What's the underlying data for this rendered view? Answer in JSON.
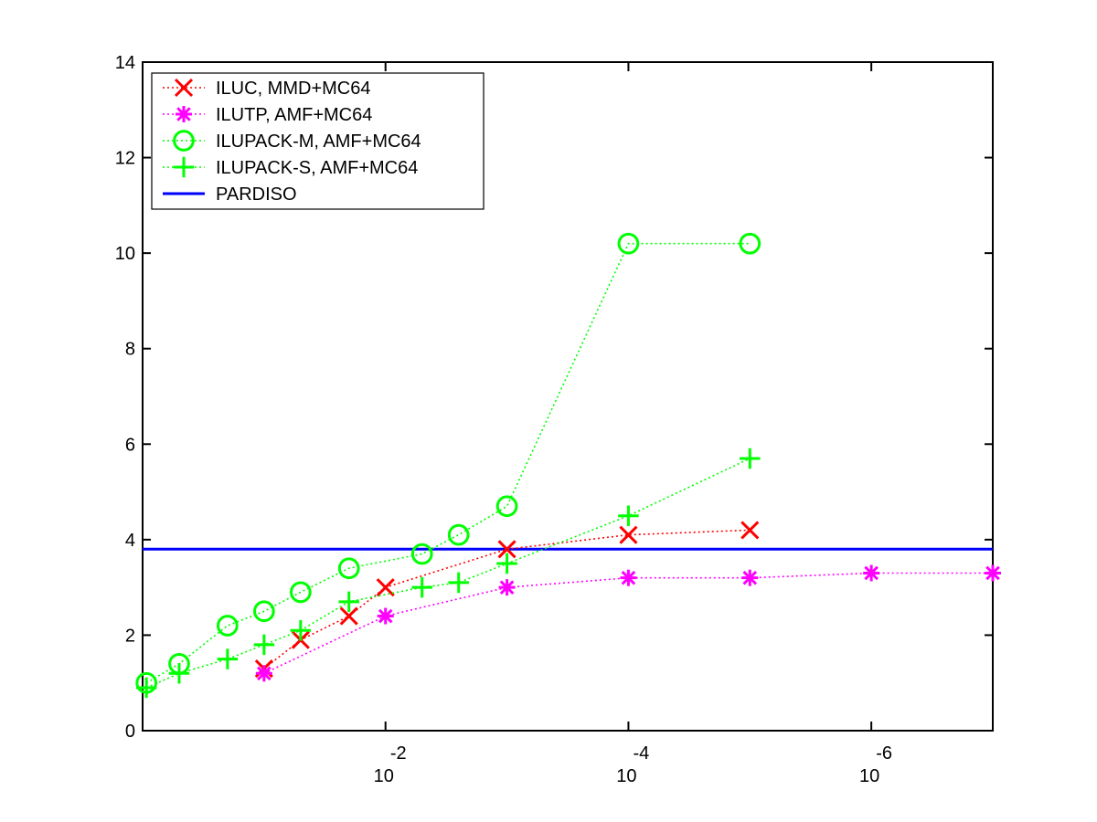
{
  "chart_data": {
    "type": "line",
    "x_scale": "log-reversed",
    "xlim": [
      1.0,
      1e-07
    ],
    "ylim": [
      0,
      14
    ],
    "yticks": [
      0,
      2,
      4,
      6,
      8,
      10,
      12,
      14
    ],
    "xticks": [
      {
        "value": 0.01,
        "base": "10",
        "exponent": "-2"
      },
      {
        "value": 0.0001,
        "base": "10",
        "exponent": "-4"
      },
      {
        "value": 1e-06,
        "base": "10",
        "exponent": "-6"
      }
    ],
    "grid": false,
    "legend": {
      "placement": "top-left"
    },
    "series": [
      {
        "name": "ILUC, MMD+MC64",
        "color": "#ff0000",
        "marker": "x",
        "line": "dotted",
        "points": [
          [
            0.1,
            1.3
          ],
          [
            0.05,
            1.9
          ],
          [
            0.02,
            2.4
          ],
          [
            0.01,
            3.0
          ],
          [
            0.001,
            3.8
          ],
          [
            0.0001,
            4.1
          ],
          [
            1e-05,
            4.2
          ]
        ]
      },
      {
        "name": "ILUTP, AMF+MC64",
        "color": "#ff00ff",
        "marker": "asterisk",
        "line": "dotted",
        "points": [
          [
            0.1,
            1.2
          ],
          [
            0.01,
            2.4
          ],
          [
            0.001,
            3.0
          ],
          [
            0.0001,
            3.2
          ],
          [
            1e-05,
            3.2
          ],
          [
            1e-06,
            3.3
          ],
          [
            1e-07,
            3.3
          ]
        ]
      },
      {
        "name": "ILUPACK-M, AMF+MC64",
        "color": "#00ff00",
        "marker": "circle",
        "line": "dotted",
        "points": [
          [
            0.93,
            1.0
          ],
          [
            0.5,
            1.4
          ],
          [
            0.2,
            2.2
          ],
          [
            0.1,
            2.5
          ],
          [
            0.05,
            2.9
          ],
          [
            0.02,
            3.4
          ],
          [
            0.005,
            3.7
          ],
          [
            0.0025,
            4.1
          ],
          [
            0.001,
            4.7
          ],
          [
            0.0001,
            10.2
          ],
          [
            1e-05,
            10.2
          ]
        ]
      },
      {
        "name": "ILUPACK-S, AMF+MC64",
        "color": "#00ff00",
        "marker": "plus",
        "line": "dotted",
        "points": [
          [
            0.93,
            0.9
          ],
          [
            0.5,
            1.2
          ],
          [
            0.2,
            1.5
          ],
          [
            0.1,
            1.8
          ],
          [
            0.05,
            2.1
          ],
          [
            0.02,
            2.7
          ],
          [
            0.005,
            3.0
          ],
          [
            0.0025,
            3.1
          ],
          [
            0.001,
            3.5
          ],
          [
            0.0001,
            4.5
          ],
          [
            1e-05,
            5.7
          ]
        ]
      },
      {
        "name": "PARDISO",
        "color": "#0000ff",
        "marker": "none",
        "line": "solid",
        "points": [
          [
            1.0,
            3.8
          ],
          [
            1e-07,
            3.8
          ]
        ]
      }
    ]
  }
}
